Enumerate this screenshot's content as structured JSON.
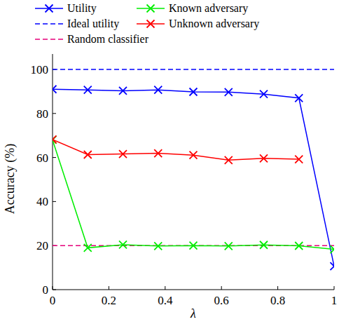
{
  "chart_data": {
    "type": "line",
    "x_label": "λ",
    "y_label": "Accuracy (%)",
    "xlim": [
      0,
      1
    ],
    "ylim": [
      0,
      107
    ],
    "xticks": [
      0,
      0.2,
      0.4,
      0.6,
      0.8,
      1
    ],
    "yticks": [
      0,
      20,
      40,
      60,
      80,
      100
    ],
    "grid": false,
    "legend": "top",
    "series": [
      {
        "name": "Utility",
        "color": "#0000ff",
        "marker": "x",
        "line_style": "solid",
        "x": [
          0,
          0.125,
          0.25,
          0.375,
          0.5,
          0.625,
          0.75,
          0.875,
          1
        ],
        "values": [
          91,
          90.7,
          90.3,
          90.7,
          89.8,
          89.7,
          88.8,
          87,
          10.6
        ]
      },
      {
        "name": "Ideal utility",
        "color": "#0000ff",
        "marker": "none",
        "line_style": "dashed",
        "x": [
          0,
          1
        ],
        "values": [
          100,
          100
        ]
      },
      {
        "name": "Random classifier",
        "color": "#e6007a",
        "marker": "none",
        "line_style": "dashed",
        "x": [
          0,
          1
        ],
        "values": [
          20,
          20
        ]
      },
      {
        "name": "Known adversary",
        "color": "#00ee00",
        "marker": "x",
        "line_style": "solid",
        "x": [
          0,
          0.125,
          0.25,
          0.375,
          0.5,
          0.625,
          0.75,
          0.875,
          1
        ],
        "values": [
          68,
          19,
          20.4,
          19.8,
          20,
          19.8,
          20.3,
          19.9,
          18.3
        ]
      },
      {
        "name": "Unknown adversary",
        "color": "#ff0000",
        "marker": "x",
        "line_style": "solid",
        "x": [
          0,
          0.125,
          0.25,
          0.375,
          0.5,
          0.625,
          0.75,
          0.875,
          1
        ],
        "values": [
          68.2,
          61.3,
          61.6,
          61.9,
          61.1,
          58.8,
          59.6,
          59.2,
          null
        ]
      }
    ]
  }
}
